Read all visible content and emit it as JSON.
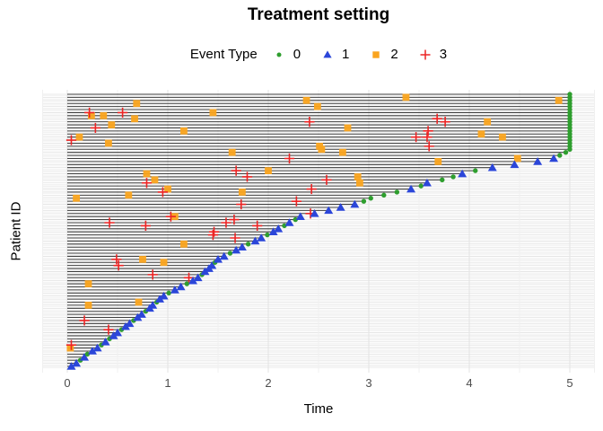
{
  "title": "Treatment setting",
  "legend": {
    "title": "Event Type",
    "items": [
      {
        "label": "0",
        "marker": "circle",
        "color": "#2e9e2e"
      },
      {
        "label": "1",
        "marker": "triangle",
        "color": "#2b46d9"
      },
      {
        "label": "2",
        "marker": "square",
        "color": "#faa41e"
      },
      {
        "label": "3",
        "marker": "plus",
        "color": "#ec2424"
      }
    ]
  },
  "axes": {
    "x_label": "Time",
    "y_label": "Patient ID",
    "x_ticks": [
      "0",
      "1",
      "2",
      "3",
      "4",
      "5"
    ],
    "x_tick_values": [
      0,
      1,
      2,
      3,
      4,
      5
    ]
  },
  "colors": {
    "background": "#ffffff",
    "grid_major": "#e3e3e3",
    "grid_minor": "#f0f0f0",
    "segment": "#3d3d3d",
    "tick_text": "#4d4d4d",
    "text": "#000000"
  },
  "chart_data": {
    "type": "scatter",
    "title": "Treatment setting",
    "xlabel": "Time",
    "ylabel": "Patient ID",
    "xlim": [
      -0.25,
      5.25
    ],
    "x_minor_breaks": [
      0.5,
      1.5,
      2.5,
      3.5,
      4.5
    ],
    "n_patients": 90,
    "note": "Each patient (rows bottom=1 to top=90, sorted by follow-up end) has a horizontal segment from time 0 to end_time; terminal_event 0=censored green circle, 1=event blue triangle; intermediate_events rows are [patient_row, time, event_type] with 2=orange square, 3=red plus.",
    "end_times": [
      0.04,
      0.09,
      0.13,
      0.17,
      0.2,
      0.25,
      0.3,
      0.34,
      0.38,
      0.42,
      0.46,
      0.5,
      0.54,
      0.58,
      0.62,
      0.66,
      0.7,
      0.74,
      0.78,
      0.82,
      0.85,
      0.89,
      0.92,
      0.96,
      1.01,
      1.07,
      1.13,
      1.19,
      1.25,
      1.3,
      1.34,
      1.37,
      1.41,
      1.44,
      1.47,
      1.5,
      1.56,
      1.62,
      1.68,
      1.74,
      1.8,
      1.87,
      1.93,
      1.99,
      2.05,
      2.1,
      2.16,
      2.21,
      2.27,
      2.32,
      2.46,
      2.6,
      2.72,
      2.86,
      2.95,
      3.02,
      3.15,
      3.28,
      3.42,
      3.52,
      3.58,
      3.73,
      3.84,
      3.93,
      4.06,
      4.23,
      4.45,
      4.68,
      4.84,
      4.9,
      4.96,
      5,
      5,
      5,
      5,
      5,
      5,
      5,
      5,
      5,
      5,
      5,
      5,
      5,
      5,
      5,
      5,
      5,
      5,
      5
    ],
    "terminal_events": [
      1,
      1,
      0,
      1,
      0,
      1,
      1,
      0,
      1,
      0,
      1,
      1,
      0,
      1,
      1,
      0,
      1,
      1,
      0,
      1,
      1,
      0,
      1,
      1,
      0,
      1,
      1,
      0,
      1,
      1,
      0,
      1,
      1,
      1,
      0,
      1,
      1,
      0,
      1,
      1,
      0,
      1,
      1,
      0,
      1,
      1,
      0,
      1,
      0,
      1,
      1,
      1,
      1,
      1,
      0,
      0,
      0,
      0,
      1,
      0,
      1,
      0,
      0,
      1,
      0,
      1,
      1,
      1,
      1,
      0,
      0,
      0,
      0,
      0,
      0,
      0,
      0,
      0,
      0,
      0,
      0,
      0,
      0,
      0,
      0,
      0,
      0,
      0,
      0,
      0
    ],
    "intermediate_events": [
      [
        88,
        2.38,
        2
      ],
      [
        86,
        2.49,
        2
      ],
      [
        89,
        3.37,
        2
      ],
      [
        87,
        0.69,
        2
      ],
      [
        84,
        1.45,
        2
      ],
      [
        83,
        0.24,
        2
      ],
      [
        83,
        0.36,
        2
      ],
      [
        82,
        0.67,
        2
      ],
      [
        81,
        4.18,
        2
      ],
      [
        80,
        0.44,
        2
      ],
      [
        79,
        2.79,
        2
      ],
      [
        78,
        1.16,
        2
      ],
      [
        77,
        4.12,
        2
      ],
      [
        76,
        0.12,
        2
      ],
      [
        76,
        4.33,
        2
      ],
      [
        74,
        0.41,
        2
      ],
      [
        73,
        2.51,
        2
      ],
      [
        72,
        2.53,
        2
      ],
      [
        71,
        1.64,
        2
      ],
      [
        71,
        2.74,
        2
      ],
      [
        69,
        4.48,
        2
      ],
      [
        68,
        3.69,
        2
      ],
      [
        65,
        2.0,
        2
      ],
      [
        64,
        0.79,
        2
      ],
      [
        63,
        2.89,
        2
      ],
      [
        62,
        0.87,
        2
      ],
      [
        61,
        2.91,
        2
      ],
      [
        59,
        1.0,
        2
      ],
      [
        58,
        1.74,
        2
      ],
      [
        57,
        0.61,
        2
      ],
      [
        56,
        0.09,
        2
      ],
      [
        50,
        1.07,
        2
      ],
      [
        88,
        4.89,
        2
      ],
      [
        41,
        1.16,
        2
      ],
      [
        36,
        0.75,
        2
      ],
      [
        35,
        0.96,
        2
      ],
      [
        28,
        0.21,
        2
      ],
      [
        22,
        0.71,
        2
      ],
      [
        21,
        0.21,
        2
      ],
      [
        7,
        0.03,
        2
      ],
      [
        84,
        0.22,
        3
      ],
      [
        84,
        0.55,
        3
      ],
      [
        79,
        0.28,
        3
      ],
      [
        75,
        0.04,
        3
      ],
      [
        81,
        2.41,
        3
      ],
      [
        69,
        2.21,
        3
      ],
      [
        82,
        3.68,
        3
      ],
      [
        81,
        3.76,
        3
      ],
      [
        78,
        3.59,
        3
      ],
      [
        76,
        3.47,
        3
      ],
      [
        76,
        3.58,
        3
      ],
      [
        73,
        3.6,
        3
      ],
      [
        61,
        0.79,
        3
      ],
      [
        58,
        0.95,
        3
      ],
      [
        50,
        1.03,
        3
      ],
      [
        47,
        0.78,
        3
      ],
      [
        47,
        1.89,
        3
      ],
      [
        45,
        1.46,
        3
      ],
      [
        48,
        1.58,
        3
      ],
      [
        49,
        1.66,
        3
      ],
      [
        65,
        1.68,
        3
      ],
      [
        63,
        1.79,
        3
      ],
      [
        54,
        1.73,
        3
      ],
      [
        59,
        2.43,
        3
      ],
      [
        55,
        2.28,
        3
      ],
      [
        62,
        2.58,
        3
      ],
      [
        51,
        2.42,
        3
      ],
      [
        43,
        1.67,
        3
      ],
      [
        36,
        0.49,
        3
      ],
      [
        34,
        0.51,
        3
      ],
      [
        31,
        0.85,
        3
      ],
      [
        30,
        1.21,
        3
      ],
      [
        16,
        0.17,
        3
      ],
      [
        13,
        0.41,
        3
      ],
      [
        8,
        0.04,
        3
      ],
      [
        48,
        0.42,
        3
      ],
      [
        44,
        1.45,
        3
      ]
    ],
    "event_type_markers": {
      "0": "circle",
      "1": "triangle",
      "2": "square",
      "3": "plus"
    },
    "event_type_colors": {
      "0": "#2e9e2e",
      "1": "#2b46d9",
      "2": "#faa41e",
      "3": "#ec2424"
    }
  }
}
